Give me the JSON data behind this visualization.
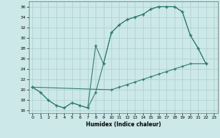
{
  "xlabel": "Humidex (Indice chaleur)",
  "xlim": [
    -0.5,
    23.5
  ],
  "ylim": [
    15.5,
    37.0
  ],
  "yticks": [
    16,
    18,
    20,
    22,
    24,
    26,
    28,
    30,
    32,
    34,
    36
  ],
  "xticks": [
    0,
    1,
    2,
    3,
    4,
    5,
    6,
    7,
    8,
    9,
    10,
    11,
    12,
    13,
    14,
    15,
    16,
    17,
    18,
    19,
    20,
    21,
    22,
    23
  ],
  "background_color": "#cce8e8",
  "grid_color": "#aacccc",
  "line_color": "#2d7a6e",
  "line1_x": [
    0,
    1,
    2,
    3,
    4,
    5,
    6,
    7,
    8,
    9,
    10,
    11,
    12,
    13,
    14,
    15,
    16,
    17,
    18,
    19,
    20,
    21,
    22
  ],
  "line1_y": [
    20.5,
    19.5,
    18.0,
    17.0,
    16.5,
    17.5,
    17.0,
    16.5,
    19.5,
    25.0,
    31.0,
    32.5,
    33.5,
    34.0,
    34.5,
    35.5,
    36.0,
    36.0,
    36.0,
    35.0,
    30.5,
    28.0,
    25.0
  ],
  "line2_x": [
    0,
    1,
    2,
    3,
    4,
    5,
    6,
    7,
    8,
    9,
    10,
    11,
    12,
    13,
    14,
    15,
    16,
    17,
    18,
    19,
    20,
    21,
    22
  ],
  "line2_y": [
    20.5,
    19.5,
    18.0,
    17.0,
    16.5,
    17.5,
    17.0,
    16.5,
    28.5,
    25.0,
    31.0,
    32.5,
    33.5,
    34.0,
    34.5,
    35.5,
    36.0,
    36.0,
    36.0,
    35.0,
    30.5,
    28.0,
    25.0
  ],
  "line3_x": [
    0,
    10,
    11,
    12,
    13,
    14,
    15,
    16,
    17,
    18,
    19,
    20,
    22
  ],
  "line3_y": [
    20.5,
    20.0,
    20.5,
    21.0,
    21.5,
    22.0,
    22.5,
    23.0,
    23.5,
    24.0,
    24.5,
    25.0,
    25.0
  ]
}
